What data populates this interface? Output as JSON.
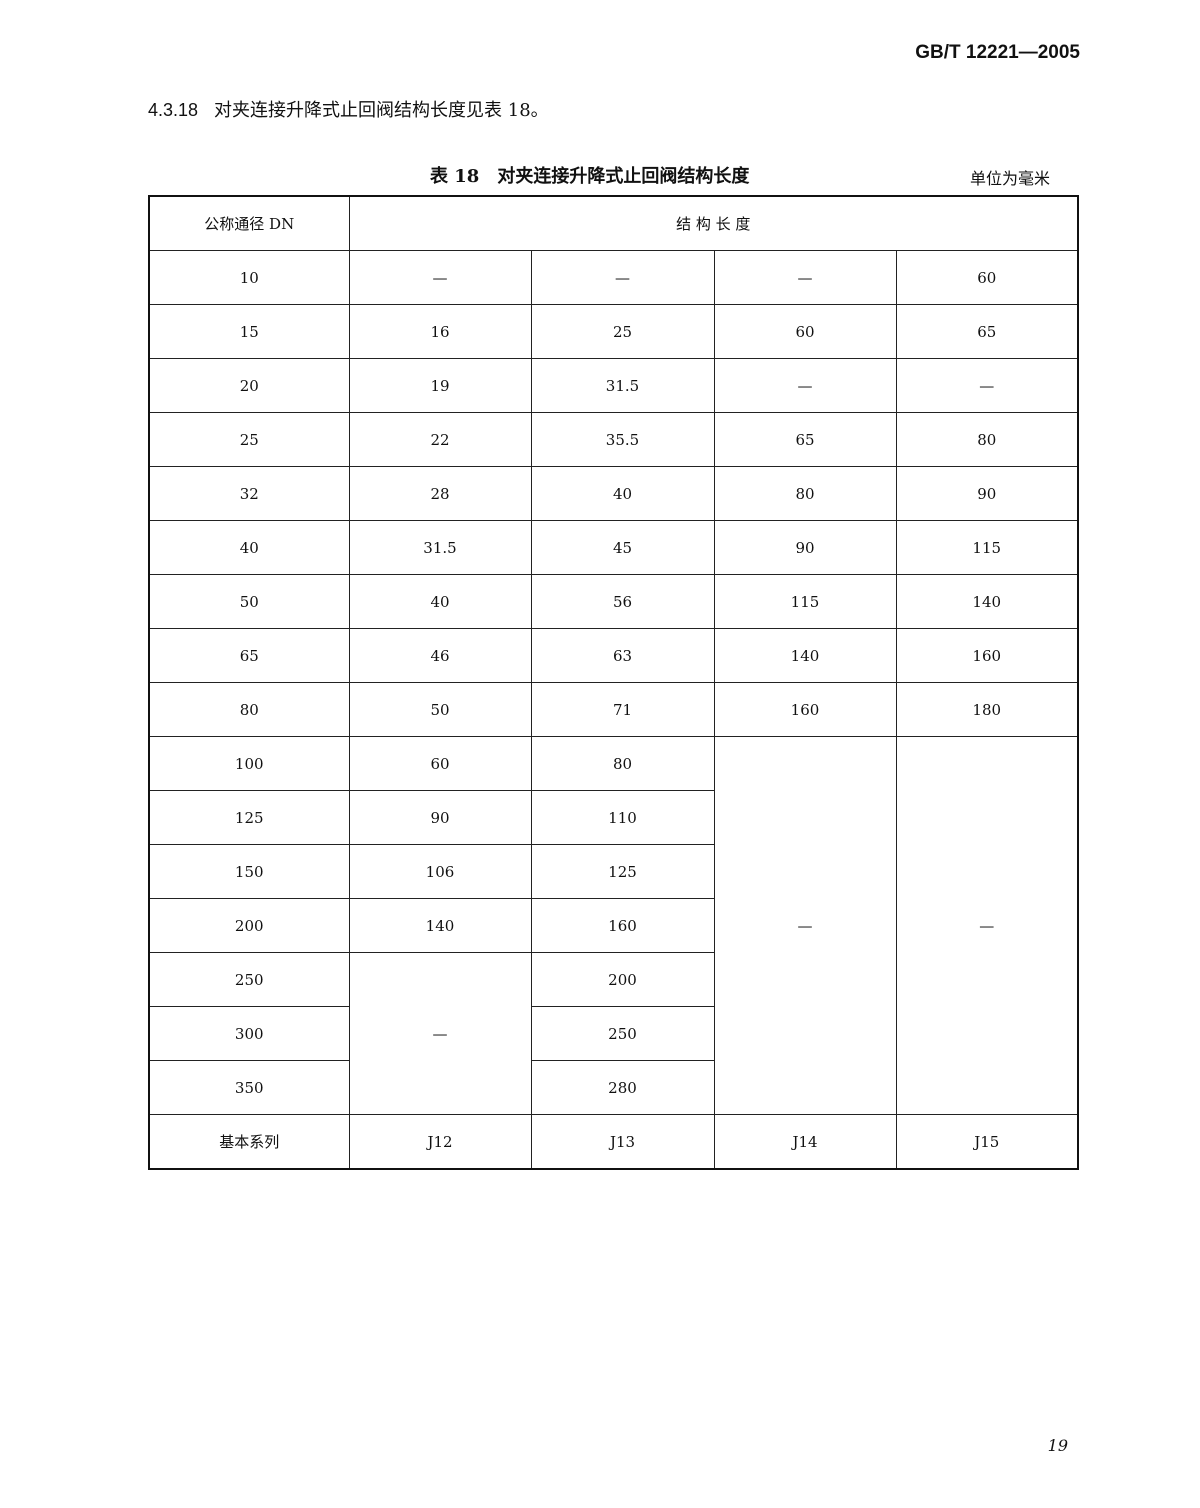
{
  "header": {
    "standard_number": "GB/T 12221—2005"
  },
  "clause": {
    "number": "4.3.18",
    "text": "对夹连接升降式止回阀结构长度见表 18。"
  },
  "table": {
    "caption_number": "表 18",
    "caption_title": "对夹连接升降式止回阀结构长度",
    "unit": "单位为毫米",
    "header_dn": "公称通径 DN",
    "header_length": "结 构 长 度",
    "rows": [
      {
        "cells": [
          {
            "text": "10"
          },
          {
            "text": "—"
          },
          {
            "text": "—"
          },
          {
            "text": "—"
          },
          {
            "text": "60"
          }
        ]
      },
      {
        "cells": [
          {
            "text": "15"
          },
          {
            "text": "16"
          },
          {
            "text": "25"
          },
          {
            "text": "60"
          },
          {
            "text": "65"
          }
        ]
      },
      {
        "cells": [
          {
            "text": "20"
          },
          {
            "text": "19"
          },
          {
            "text": "31.5"
          },
          {
            "text": "—"
          },
          {
            "text": "—"
          }
        ]
      },
      {
        "cells": [
          {
            "text": "25"
          },
          {
            "text": "22"
          },
          {
            "text": "35.5"
          },
          {
            "text": "65"
          },
          {
            "text": "80"
          }
        ]
      },
      {
        "cells": [
          {
            "text": "32"
          },
          {
            "text": "28"
          },
          {
            "text": "40"
          },
          {
            "text": "80"
          },
          {
            "text": "90"
          }
        ]
      },
      {
        "cells": [
          {
            "text": "40"
          },
          {
            "text": "31.5"
          },
          {
            "text": "45"
          },
          {
            "text": "90"
          },
          {
            "text": "115"
          }
        ]
      },
      {
        "cells": [
          {
            "text": "50"
          },
          {
            "text": "40"
          },
          {
            "text": "56"
          },
          {
            "text": "115"
          },
          {
            "text": "140"
          }
        ]
      },
      {
        "cells": [
          {
            "text": "65"
          },
          {
            "text": "46"
          },
          {
            "text": "63"
          },
          {
            "text": "140"
          },
          {
            "text": "160"
          }
        ]
      },
      {
        "cells": [
          {
            "text": "80"
          },
          {
            "text": "50"
          },
          {
            "text": "71"
          },
          {
            "text": "160"
          },
          {
            "text": "180"
          }
        ]
      },
      {
        "cells": [
          {
            "text": "100"
          },
          {
            "text": "60"
          },
          {
            "text": "80"
          },
          {
            "text": "—",
            "rowspan": 7
          },
          {
            "text": "—",
            "rowspan": 7
          }
        ]
      },
      {
        "cells": [
          {
            "text": "125"
          },
          {
            "text": "90"
          },
          {
            "text": "110"
          }
        ]
      },
      {
        "cells": [
          {
            "text": "150"
          },
          {
            "text": "106"
          },
          {
            "text": "125"
          }
        ]
      },
      {
        "cells": [
          {
            "text": "200"
          },
          {
            "text": "140"
          },
          {
            "text": "160"
          }
        ]
      },
      {
        "cells": [
          {
            "text": "250"
          },
          {
            "text": "—",
            "rowspan": 3
          },
          {
            "text": "200"
          }
        ]
      },
      {
        "cells": [
          {
            "text": "300"
          },
          {
            "text": "250"
          }
        ]
      },
      {
        "cells": [
          {
            "text": "350"
          },
          {
            "text": "280"
          }
        ]
      },
      {
        "cells": [
          {
            "text": "基本系列"
          },
          {
            "text": "J12"
          },
          {
            "text": "J13"
          },
          {
            "text": "J14"
          },
          {
            "text": "J15"
          }
        ]
      }
    ]
  },
  "footer": {
    "page_number": "19"
  }
}
